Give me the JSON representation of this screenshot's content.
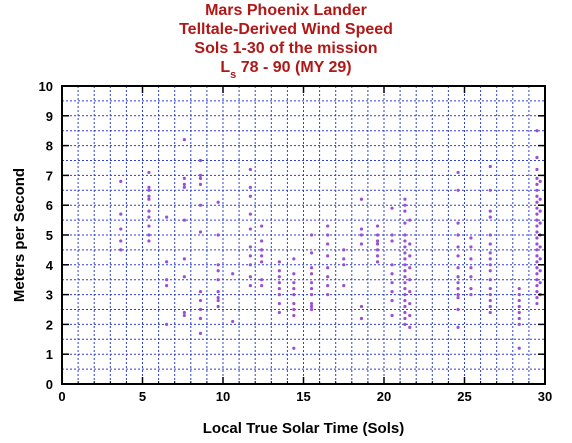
{
  "chart_data": {
    "type": "scatter",
    "title_lines": [
      "Mars Phoenix Lander",
      "Telltale-Derived Wind Speed",
      "Sols 1-30 of the mission"
    ],
    "title_ls": {
      "main": "L",
      "sub": "s",
      "rest": " 78 - 90 (MY 29)"
    },
    "xlabel": "Local True Solar Time (Sols)",
    "ylabel": "Meters per Second",
    "xlim": [
      0,
      30
    ],
    "ylim": [
      0,
      10
    ],
    "x_ticks": [
      "0",
      "5",
      "10",
      "15",
      "20",
      "25",
      "30"
    ],
    "y_ticks": [
      "0",
      "1",
      "2",
      "3",
      "4",
      "5",
      "6",
      "7",
      "8",
      "9",
      "10"
    ],
    "grid": true,
    "point_color": "#9a4fd6",
    "axis_color": "#000000",
    "grid_color": "#2f3fd0",
    "series": [
      {
        "points": [
          [
            3.65,
            6.8
          ],
          [
            3.65,
            5.7
          ],
          [
            3.65,
            5.2
          ],
          [
            3.65,
            4.8
          ],
          [
            3.65,
            4.5
          ],
          [
            5.4,
            7.1
          ],
          [
            5.4,
            6.6
          ],
          [
            5.4,
            6.5
          ],
          [
            5.4,
            6.3
          ],
          [
            5.4,
            6.2
          ],
          [
            5.4,
            5.8
          ],
          [
            5.4,
            5.6
          ],
          [
            5.4,
            5.3
          ],
          [
            5.4,
            5.0
          ],
          [
            5.4,
            4.8
          ],
          [
            6.5,
            4.1
          ],
          [
            6.5,
            3.5
          ],
          [
            6.5,
            3.3
          ],
          [
            6.5,
            2.0
          ],
          [
            6.5,
            5.6
          ],
          [
            7.6,
            8.2
          ],
          [
            7.6,
            6.9
          ],
          [
            7.6,
            6.7
          ],
          [
            7.6,
            6.6
          ],
          [
            7.6,
            5.5
          ],
          [
            7.6,
            4.2
          ],
          [
            7.6,
            3.6
          ],
          [
            7.6,
            2.4
          ],
          [
            7.6,
            2.3
          ],
          [
            8.6,
            7.5
          ],
          [
            8.6,
            7.0
          ],
          [
            8.6,
            6.9
          ],
          [
            8.6,
            6.7
          ],
          [
            8.6,
            6.0
          ],
          [
            8.6,
            5.1
          ],
          [
            8.6,
            3.1
          ],
          [
            8.6,
            2.8
          ],
          [
            8.6,
            2.2
          ],
          [
            8.6,
            1.7
          ],
          [
            8.6,
            2.5
          ],
          [
            9.7,
            6.1
          ],
          [
            9.7,
            5.0
          ],
          [
            9.7,
            4.0
          ],
          [
            9.7,
            3.8
          ],
          [
            9.7,
            3.5
          ],
          [
            9.7,
            3.1
          ],
          [
            9.7,
            2.8
          ],
          [
            9.7,
            2.6
          ],
          [
            9.7,
            2.9
          ],
          [
            10.6,
            3.7
          ],
          [
            10.6,
            2.1
          ],
          [
            11.7,
            7.2
          ],
          [
            11.7,
            6.6
          ],
          [
            11.7,
            6.3
          ],
          [
            11.7,
            5.2
          ],
          [
            11.7,
            4.6
          ],
          [
            11.7,
            4.3
          ],
          [
            11.7,
            4.0
          ],
          [
            11.7,
            3.6
          ],
          [
            11.7,
            3.3
          ],
          [
            11.7,
            5.7
          ],
          [
            12.4,
            5.3
          ],
          [
            12.4,
            4.8
          ],
          [
            12.4,
            4.5
          ],
          [
            12.4,
            4.3
          ],
          [
            12.4,
            4.1
          ],
          [
            12.4,
            3.5
          ],
          [
            12.4,
            3.3
          ],
          [
            13.5,
            4.1
          ],
          [
            13.5,
            3.8
          ],
          [
            13.5,
            3.6
          ],
          [
            13.5,
            3.4
          ],
          [
            13.5,
            3.2
          ],
          [
            13.5,
            3.0
          ],
          [
            13.5,
            2.7
          ],
          [
            13.5,
            2.4
          ],
          [
            14.4,
            4.2
          ],
          [
            14.4,
            3.7
          ],
          [
            14.4,
            3.4
          ],
          [
            14.4,
            3.2
          ],
          [
            14.4,
            3.0
          ],
          [
            14.4,
            2.7
          ],
          [
            14.4,
            2.5
          ],
          [
            14.4,
            2.3
          ],
          [
            14.4,
            1.2
          ],
          [
            15.5,
            5.0
          ],
          [
            15.5,
            4.4
          ],
          [
            15.5,
            3.9
          ],
          [
            15.5,
            3.7
          ],
          [
            15.5,
            3.4
          ],
          [
            15.5,
            3.2
          ],
          [
            15.5,
            3.0
          ],
          [
            15.5,
            2.7
          ],
          [
            15.5,
            2.6
          ],
          [
            15.5,
            2.5
          ],
          [
            16.5,
            5.3
          ],
          [
            16.5,
            5.0
          ],
          [
            16.5,
            4.7
          ],
          [
            16.5,
            4.3
          ],
          [
            16.5,
            3.9
          ],
          [
            16.5,
            3.6
          ],
          [
            16.5,
            3.3
          ],
          [
            16.5,
            3.0
          ],
          [
            17.5,
            4.5
          ],
          [
            17.5,
            4.2
          ],
          [
            17.5,
            4.0
          ],
          [
            17.5,
            3.3
          ],
          [
            18.6,
            6.2
          ],
          [
            18.6,
            5.2
          ],
          [
            18.6,
            5.0
          ],
          [
            18.6,
            4.7
          ],
          [
            18.6,
            2.6
          ],
          [
            18.6,
            2.2
          ],
          [
            19.6,
            5.3
          ],
          [
            19.6,
            5.0
          ],
          [
            19.6,
            4.8
          ],
          [
            19.6,
            4.5
          ],
          [
            19.6,
            4.3
          ],
          [
            19.6,
            4.1
          ],
          [
            19.6,
            4.7
          ],
          [
            20.5,
            5.9
          ],
          [
            20.5,
            5.0
          ],
          [
            20.5,
            4.8
          ],
          [
            20.5,
            4.0
          ],
          [
            20.5,
            3.7
          ],
          [
            20.5,
            3.4
          ],
          [
            20.5,
            3.1
          ],
          [
            20.5,
            2.8
          ],
          [
            20.5,
            2.3
          ],
          [
            21.3,
            6.2
          ],
          [
            21.3,
            6.0
          ],
          [
            21.3,
            5.8
          ],
          [
            21.3,
            5.4
          ],
          [
            21.3,
            5.0
          ],
          [
            21.3,
            4.8
          ],
          [
            21.3,
            4.6
          ],
          [
            21.3,
            4.4
          ],
          [
            21.3,
            4.2
          ],
          [
            21.3,
            4.0
          ],
          [
            21.3,
            3.8
          ],
          [
            21.3,
            3.6
          ],
          [
            21.3,
            3.4
          ],
          [
            21.3,
            3.2
          ],
          [
            21.3,
            3.0
          ],
          [
            21.3,
            2.8
          ],
          [
            21.3,
            2.6
          ],
          [
            21.3,
            2.4
          ],
          [
            21.3,
            2.2
          ],
          [
            21.3,
            2.0
          ],
          [
            21.6,
            5.5
          ],
          [
            21.6,
            4.7
          ],
          [
            21.6,
            4.3
          ],
          [
            21.6,
            3.9
          ],
          [
            21.6,
            3.5
          ],
          [
            21.6,
            3.1
          ],
          [
            21.6,
            2.7
          ],
          [
            21.6,
            2.3
          ],
          [
            21.6,
            1.9
          ],
          [
            24.6,
            7.1
          ],
          [
            24.6,
            6.5
          ],
          [
            24.6,
            5.4
          ],
          [
            24.6,
            5.0
          ],
          [
            24.6,
            4.6
          ],
          [
            24.6,
            4.3
          ],
          [
            24.6,
            3.9
          ],
          [
            24.6,
            3.6
          ],
          [
            24.6,
            3.4
          ],
          [
            24.6,
            3.2
          ],
          [
            24.6,
            3.0
          ],
          [
            24.6,
            2.9
          ],
          [
            24.6,
            2.5
          ],
          [
            24.6,
            1.9
          ],
          [
            25.4,
            4.9
          ],
          [
            25.4,
            4.6
          ],
          [
            25.4,
            4.2
          ],
          [
            25.4,
            3.9
          ],
          [
            25.4,
            3.6
          ],
          [
            25.4,
            3.2
          ],
          [
            25.4,
            3.0
          ],
          [
            26.6,
            7.3
          ],
          [
            26.6,
            6.5
          ],
          [
            26.6,
            5.8
          ],
          [
            26.6,
            5.6
          ],
          [
            26.6,
            5.0
          ],
          [
            26.6,
            4.7
          ],
          [
            26.6,
            4.4
          ],
          [
            26.6,
            4.2
          ],
          [
            26.6,
            4.0
          ],
          [
            26.6,
            3.8
          ],
          [
            26.6,
            3.5
          ],
          [
            26.6,
            3.2
          ],
          [
            26.6,
            3.0
          ],
          [
            26.6,
            2.8
          ],
          [
            26.6,
            2.6
          ],
          [
            26.6,
            2.4
          ],
          [
            28.4,
            3.2
          ],
          [
            28.4,
            3.0
          ],
          [
            28.4,
            2.8
          ],
          [
            28.4,
            2.6
          ],
          [
            28.4,
            2.4
          ],
          [
            28.4,
            2.2
          ],
          [
            28.4,
            2.0
          ],
          [
            28.4,
            1.2
          ],
          [
            29.5,
            8.5
          ],
          [
            29.5,
            7.6
          ],
          [
            29.5,
            7.2
          ],
          [
            29.5,
            6.9
          ],
          [
            29.5,
            6.7
          ],
          [
            29.5,
            6.5
          ],
          [
            29.5,
            6.3
          ],
          [
            29.5,
            6.1
          ],
          [
            29.5,
            5.9
          ],
          [
            29.5,
            5.7
          ],
          [
            29.5,
            5.5
          ],
          [
            29.5,
            5.3
          ],
          [
            29.5,
            5.1
          ],
          [
            29.5,
            4.9
          ],
          [
            29.5,
            4.7
          ],
          [
            29.5,
            4.5
          ],
          [
            29.5,
            4.3
          ],
          [
            29.5,
            4.1
          ],
          [
            29.5,
            3.9
          ],
          [
            29.5,
            3.7
          ],
          [
            29.5,
            3.5
          ],
          [
            29.5,
            3.3
          ],
          [
            29.5,
            3.1
          ],
          [
            29.5,
            2.9
          ],
          [
            29.5,
            2.7
          ],
          [
            29.7,
            6.8
          ],
          [
            29.7,
            6.2
          ],
          [
            29.7,
            5.8
          ],
          [
            29.7,
            5.4
          ],
          [
            29.7,
            5.0
          ],
          [
            29.7,
            4.6
          ],
          [
            29.7,
            4.2
          ],
          [
            29.7,
            3.8
          ],
          [
            29.7,
            3.4
          ],
          [
            29.7,
            3.0
          ]
        ]
      }
    ]
  }
}
